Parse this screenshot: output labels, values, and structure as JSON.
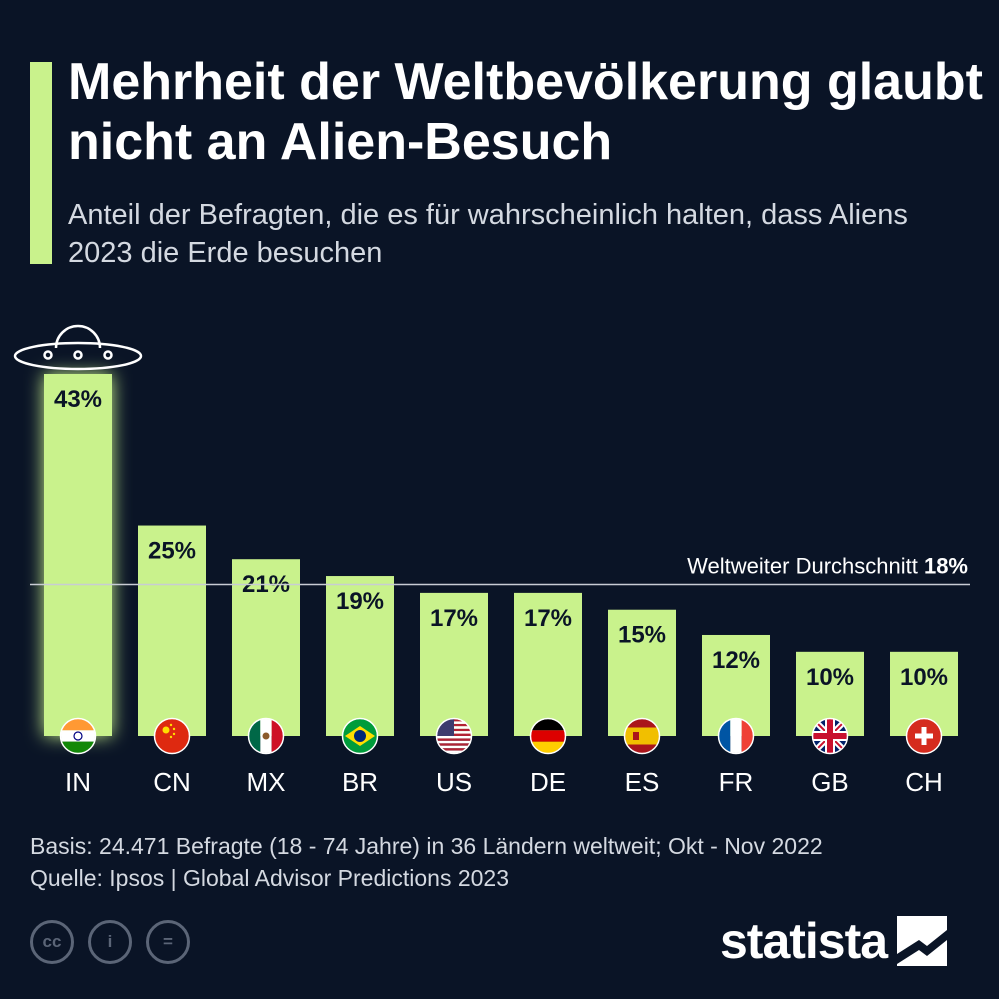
{
  "header": {
    "title": "Mehrheit der Weltbevölkerung glaubt nicht an Alien-Besuch",
    "subtitle": "Anteil der Befragten, die es für wahrscheinlich halten, dass Aliens 2023 die Erde besuchen"
  },
  "colors": {
    "background": "#0a1426",
    "bar": "#c9f28c",
    "accent": "#c9f28c",
    "text": "#ffffff"
  },
  "chart_data": {
    "type": "bar",
    "categories": [
      "IN",
      "CN",
      "MX",
      "BR",
      "US",
      "DE",
      "ES",
      "FR",
      "GB",
      "CH"
    ],
    "values": [
      43,
      25,
      21,
      19,
      17,
      17,
      15,
      12,
      10,
      10
    ],
    "value_labels": [
      "43%",
      "25%",
      "21%",
      "19%",
      "17%",
      "17%",
      "15%",
      "12%",
      "10%",
      "10%"
    ],
    "flag_icons": [
      "flag-india-icon",
      "flag-china-icon",
      "flag-mexico-icon",
      "flag-brazil-icon",
      "flag-usa-icon",
      "flag-germany-icon",
      "flag-spain-icon",
      "flag-france-icon",
      "flag-uk-icon",
      "flag-switzerland-icon"
    ],
    "reference_line": {
      "value": 18,
      "label": "Weltweiter Durchschnitt",
      "value_label": "18%"
    },
    "title": "Mehrheit der Weltbevölkerung glaubt nicht an Alien-Besuch",
    "xlabel": "",
    "ylabel": "",
    "ylim": [
      0,
      43
    ],
    "grid": false,
    "highlight_icon": "ufo-icon"
  },
  "footer": {
    "basis": "Basis: 24.471 Befragte (18 - 74 Jahre) in 36 Ländern weltweit; Okt - Nov 2022",
    "source": "Quelle: Ipsos | Global Advisor Predictions 2023"
  },
  "license_icons": [
    "cc-icon",
    "attribution-icon",
    "no-derivatives-icon"
  ],
  "license_glyphs": [
    "cc",
    "i",
    "="
  ],
  "brand": {
    "name": "statista"
  }
}
